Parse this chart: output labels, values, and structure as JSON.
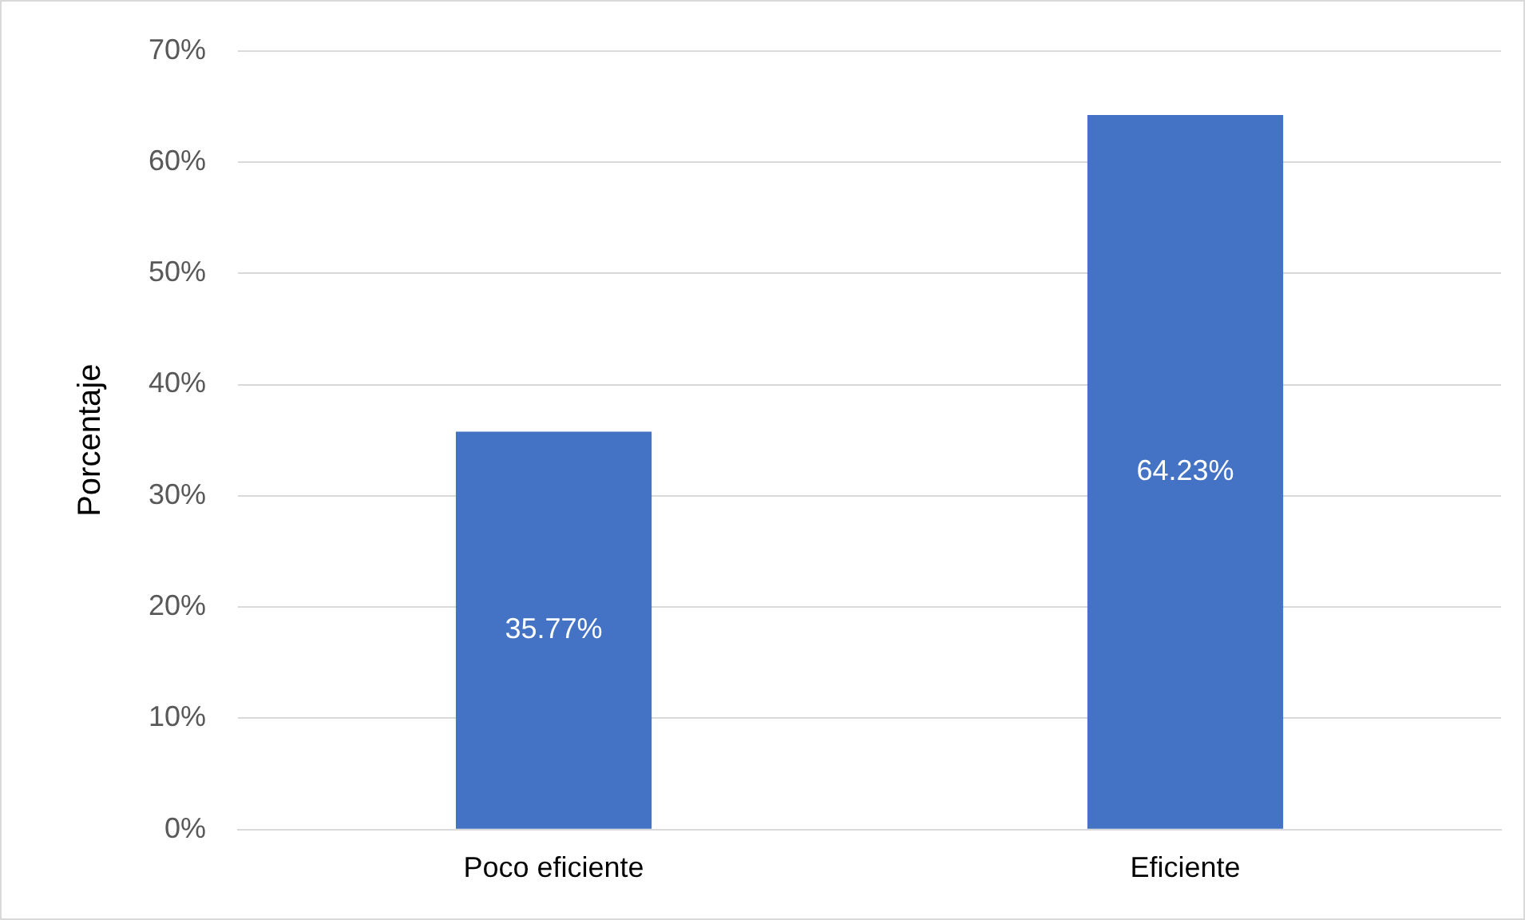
{
  "chart_data": {
    "type": "bar",
    "ylabel": "Porcentaje",
    "categories": [
      "Poco eficiente",
      "Eficiente"
    ],
    "values": [
      35.77,
      64.23
    ],
    "color": "#4472c4",
    "value_labels": [
      "35.77%",
      "64.23%"
    ],
    "ylim": [
      0,
      70
    ],
    "yticks": [
      {
        "value": 0,
        "label": "0%"
      },
      {
        "value": 10,
        "label": "10%"
      },
      {
        "value": 20,
        "label": "20%"
      },
      {
        "value": 30,
        "label": "30%"
      },
      {
        "value": 40,
        "label": "40%"
      },
      {
        "value": 50,
        "label": "50%"
      },
      {
        "value": 60,
        "label": "60%"
      },
      {
        "value": 70,
        "label": "70%"
      }
    ],
    "grid": "y",
    "legend": false
  }
}
